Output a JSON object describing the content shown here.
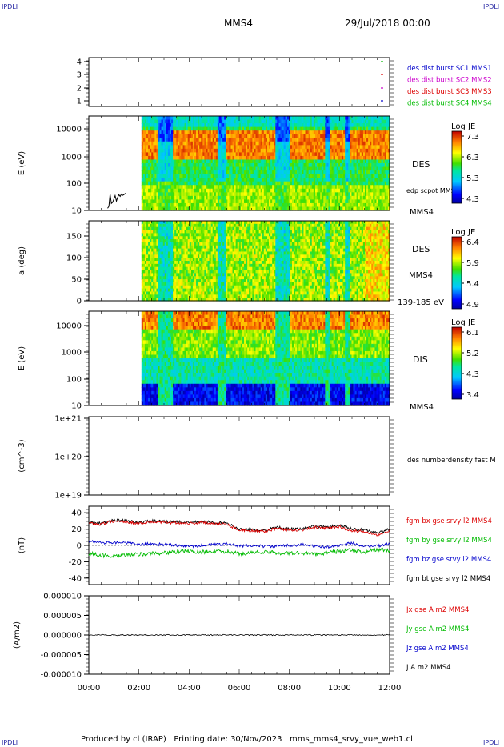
{
  "corners": {
    "top_left": "IPDLI",
    "top_right": "IPDLI",
    "bottom_left": "IPDLI",
    "bottom_right": "IPDLI"
  },
  "header": {
    "title": "MMS4",
    "date": "29/Jul/2018 00:00"
  },
  "footer": "Produced by cl (IRAP)   Printing date: 30/Nov/2023   mms_mms4_srvy_vue_web1.cl",
  "colors": {
    "corner_text": "#2020a0",
    "mms1": "#0000cc",
    "mms2": "#cc00cc",
    "mms3": "#dd0000",
    "mms4": "#00bb00",
    "black": "#000000"
  },
  "chart_data": [
    {
      "type": "line",
      "panel": "availability",
      "yticks": [
        "4",
        "3",
        "2",
        "1"
      ],
      "ylim": [
        0.5,
        4.5
      ],
      "legend": [
        {
          "text": "des dist burst SC1 MMS1",
          "color": "#0000cc"
        },
        {
          "text": "des dist burst SC2 MMS2",
          "color": "#cc00cc"
        },
        {
          "text": "des dist burst SC3 MMS3",
          "color": "#dd0000"
        },
        {
          "text": "des dist burst SC4 MMS4",
          "color": "#00bb00"
        }
      ]
    },
    {
      "type": "heatmap",
      "panel": "des-energy",
      "ylabel": "E (eV)",
      "yticks": [
        "10000",
        "1000",
        "100",
        "10"
      ],
      "ylim": [
        10,
        30000
      ],
      "log_y": true,
      "label": "DES",
      "overlay_label": "edp scpot MMS4",
      "below_label": "MMS4",
      "colorbar": {
        "title": "Log JE",
        "ticks": [
          "7.3",
          "6.3",
          "5.3",
          "4.3"
        ]
      },
      "data_start_hour": 2.1,
      "overlay_x_hours": [
        0.75,
        0.8,
        0.85,
        0.9,
        0.95,
        1.0,
        1.05,
        1.1,
        1.15,
        1.2,
        1.25,
        1.3,
        1.35,
        1.4,
        1.45,
        1.5
      ],
      "overlay_values": [
        12,
        14,
        40,
        18,
        20,
        26,
        35,
        22,
        30,
        38,
        33,
        40,
        36,
        38,
        42,
        40
      ]
    },
    {
      "type": "heatmap",
      "panel": "pitch-angle",
      "ylabel": "a (deg)",
      "yticks": [
        "150",
        "100",
        "50",
        "0"
      ],
      "ylim": [
        0,
        180
      ],
      "label": "DES",
      "label2": "MMS4",
      "below_label": "139-185 eV",
      "colorbar": {
        "title": "Log JE",
        "ticks": [
          "6.4",
          "5.9",
          "5.4",
          "4.9"
        ]
      },
      "data_start_hour": 2.1
    },
    {
      "type": "heatmap",
      "panel": "dis-energy",
      "ylabel": "E (eV)",
      "yticks": [
        "10000",
        "1000",
        "100",
        "10"
      ],
      "ylim": [
        10,
        30000
      ],
      "log_y": true,
      "label": "DIS",
      "below_label": "MMS4",
      "colorbar": {
        "title": "Log JE",
        "ticks": [
          "6.1",
          "5.2",
          "4.3",
          "3.4"
        ]
      },
      "data_start_hour": 2.1
    },
    {
      "type": "line",
      "panel": "density",
      "ylabel": "(cm^-3)",
      "yticks": [
        "1e+21",
        "1e+20",
        "1e+19"
      ],
      "log_y": true,
      "legend": [
        {
          "text": "des numberdensity fast M",
          "color": "#000000"
        }
      ]
    },
    {
      "type": "line",
      "panel": "magnetic-field",
      "ylabel": "(nT)",
      "yticks": [
        "40",
        "20",
        "0",
        "-20",
        "-40"
      ],
      "ylim": [
        -48,
        48
      ],
      "legend": [
        {
          "text": "fgm bx gse srvy l2 MMS4",
          "color": "#dd0000"
        },
        {
          "text": "fgm by gse srvy l2 MMS4",
          "color": "#00bb00"
        },
        {
          "text": "fgm bz gse srvy l2 MMS4",
          "color": "#0000cc"
        },
        {
          "text": "fgm bt gse srvy l2 MMS4",
          "color": "#000000"
        }
      ],
      "x_hours": [
        0,
        0.5,
        1,
        1.5,
        2,
        2.5,
        3,
        3.5,
        4,
        4.5,
        5,
        5.5,
        6,
        6.5,
        7,
        7.5,
        8,
        8.5,
        9,
        9.5,
        10,
        10.5,
        11,
        11.5,
        12
      ],
      "series": [
        {
          "name": "fgm bt gse srvy l2 MMS4",
          "color": "#000000",
          "values": [
            29,
            27,
            31,
            30,
            28,
            30,
            29,
            29,
            28,
            29,
            28,
            27,
            20,
            19,
            18,
            22,
            20,
            20,
            24,
            22,
            25,
            20,
            19,
            15,
            20
          ]
        },
        {
          "name": "fgm bx gse srvy l2 MMS4",
          "color": "#dd0000",
          "values": [
            27,
            26,
            30,
            29,
            27,
            29,
            28,
            28,
            27,
            28,
            27,
            26,
            19,
            18,
            17,
            21,
            19,
            19,
            22,
            21,
            23,
            18,
            17,
            13,
            18
          ]
        },
        {
          "name": "fgm bz gse srvy l2 MMS4",
          "color": "#0000cc",
          "values": [
            5,
            3,
            4,
            3,
            1,
            2,
            1,
            0,
            -1,
            0,
            1,
            2,
            -1,
            0,
            -1,
            -1,
            0,
            1,
            -1,
            -2,
            0,
            3,
            -1,
            -1,
            2
          ]
        },
        {
          "name": "fgm by gse srvy l2 MMS4",
          "color": "#00bb00",
          "values": [
            -10,
            -12,
            -14,
            -12,
            -11,
            -10,
            -9,
            -8,
            -7,
            -8,
            -7,
            -8,
            -10,
            -9,
            -8,
            -9,
            -10,
            -9,
            -11,
            -9,
            -7,
            -6,
            -8,
            -5,
            -7
          ]
        }
      ]
    },
    {
      "type": "line",
      "panel": "current-density",
      "ylabel": "(A/m2)",
      "yticks": [
        "0.000010",
        "0.000005",
        "0.000000",
        "-0.000005",
        "-0.000010"
      ],
      "ylim": [
        -1e-05,
        1e-05
      ],
      "legend": [
        {
          "text": "Jx gse A m2 MMS4",
          "color": "#dd0000"
        },
        {
          "text": "Jy gse A m2 MMS4",
          "color": "#00bb00"
        },
        {
          "text": "Jz gse A m2 MMS4",
          "color": "#0000cc"
        },
        {
          "text": "J A m2 MMS4",
          "color": "#000000"
        }
      ],
      "xticks": [
        "00:00",
        "02:00",
        "04:00",
        "06:00",
        "08:00",
        "10:00",
        "12:00"
      ],
      "xlim_hours": [
        0,
        12
      ]
    }
  ]
}
